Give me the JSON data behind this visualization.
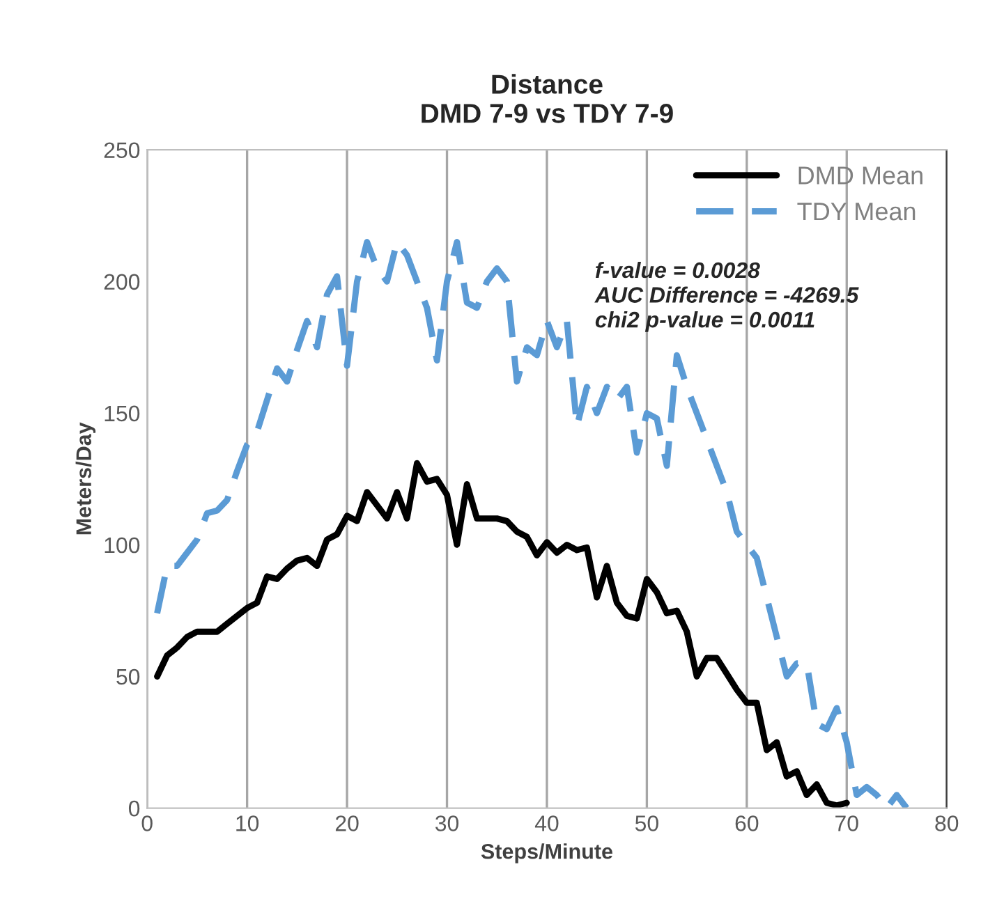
{
  "chart_data": {
    "type": "line",
    "title": "Distance\nDMD 7-9 vs TDY 7-9",
    "xlabel": "Steps/Minute",
    "ylabel": "Meters/Day",
    "xlim": [
      0,
      80
    ],
    "xticks": [
      0,
      10,
      20,
      30,
      40,
      50,
      60,
      70,
      80
    ],
    "ylim": [
      0,
      250
    ],
    "yticks": [
      0,
      50,
      100,
      150,
      200,
      250
    ],
    "grid": "x",
    "legend": "top right",
    "marker": "none",
    "annotations": [
      "f-value = 0.0028\nAUC Difference = -4269.5\nchi2 p-value = 0.0011"
    ],
    "series": [
      {
        "name": "DMD Mean",
        "color": "#000000",
        "line_style": "solid",
        "x": [
          1,
          2,
          3,
          4,
          5,
          6,
          7,
          8,
          9,
          10,
          11,
          12,
          13,
          14,
          15,
          16,
          17,
          18,
          19,
          20,
          21,
          22,
          23,
          24,
          25,
          26,
          27,
          28,
          29,
          30,
          31,
          32,
          33,
          34,
          35,
          36,
          37,
          38,
          39,
          40,
          41,
          42,
          43,
          44,
          45,
          46,
          47,
          48,
          49,
          50,
          51,
          52,
          53,
          54,
          55,
          56,
          57,
          58,
          59,
          60,
          61,
          62,
          63,
          64,
          65,
          66,
          67,
          68,
          69,
          70
        ],
        "values": [
          50,
          58,
          61,
          65,
          67,
          67,
          67,
          70,
          73,
          76,
          78,
          88,
          87,
          91,
          94,
          95,
          92,
          102,
          104,
          111,
          109,
          120,
          115,
          110,
          120,
          110,
          131,
          124,
          125,
          119,
          100,
          123,
          110,
          110,
          110,
          109,
          105,
          103,
          96,
          101,
          97,
          100,
          98,
          99,
          80,
          92,
          78,
          73,
          72,
          87,
          82,
          74,
          75,
          67,
          50,
          57,
          57,
          51,
          45,
          40,
          40,
          22,
          25,
          12,
          14,
          5,
          9,
          2,
          1,
          2
        ]
      },
      {
        "name": "TDY Mean",
        "color": "#5b9bd5",
        "line_style": "dashed",
        "x": [
          1,
          2,
          3,
          4,
          5,
          6,
          7,
          8,
          9,
          10,
          11,
          12,
          13,
          14,
          15,
          16,
          17,
          18,
          19,
          20,
          21,
          22,
          23,
          24,
          25,
          26,
          27,
          28,
          29,
          30,
          31,
          32,
          33,
          34,
          35,
          36,
          37,
          38,
          39,
          40,
          41,
          42,
          43,
          44,
          45,
          46,
          47,
          48,
          49,
          50,
          51,
          52,
          53,
          54,
          55,
          56,
          57,
          58,
          59,
          60,
          61,
          62,
          63,
          64,
          65,
          66,
          67,
          68,
          69,
          70,
          71,
          72,
          73,
          74,
          75,
          76
        ],
        "values": [
          74,
          92,
          92,
          97,
          102,
          112,
          113,
          117,
          128,
          138,
          143,
          155,
          167,
          162,
          174,
          185,
          175,
          195,
          202,
          168,
          200,
          215,
          205,
          200,
          215,
          210,
          200,
          190,
          170,
          200,
          215,
          192,
          190,
          200,
          205,
          200,
          162,
          175,
          172,
          185,
          175,
          185,
          145,
          160,
          150,
          160,
          155,
          160,
          135,
          150,
          148,
          130,
          172,
          160,
          150,
          140,
          130,
          120,
          105,
          100,
          95,
          80,
          65,
          50,
          55,
          55,
          32,
          30,
          38,
          25,
          5,
          8,
          5,
          0,
          5,
          0
        ]
      }
    ]
  }
}
